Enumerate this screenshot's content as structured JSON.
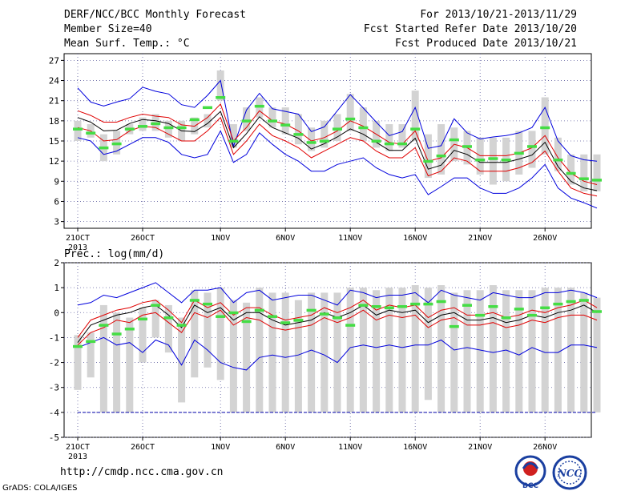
{
  "header": {
    "title": "DERF/NCC/BCC Monthly Forecast",
    "member_size": "Member Size=40",
    "variable_top": "Mean Surf. Temp.: °C",
    "period": "For 2013/10/21-2013/11/29",
    "started": "Fcst Started Refer Date 2013/10/20",
    "produced": "Fcst Produced Date 2013/10/21"
  },
  "footer": {
    "url": "http://cmdp.ncc.cma.gov.cn",
    "grads": "GrADS: COLA/IGES",
    "logo_left_text": "BCC",
    "logo_right_text": "NCC"
  },
  "colors": {
    "envelope": "#0000dd",
    "spread": "#e00000",
    "mean": "#000000",
    "box": "#d3d3d3",
    "marker": "#44dd44",
    "grid": "#6060a0",
    "ref_line": "#0000aa"
  },
  "chart_data": [
    {
      "type": "line",
      "title": "Mean Surf. Temp.: °C",
      "x_ticks": [
        {
          "day": 0,
          "label": "21OCT",
          "sublabel": "2013"
        },
        {
          "day": 5,
          "label": "26OCT"
        },
        {
          "day": 11,
          "label": "1NOV"
        },
        {
          "day": 16,
          "label": "6NOV"
        },
        {
          "day": 21,
          "label": "11NOV"
        },
        {
          "day": 26,
          "label": "16NOV"
        },
        {
          "day": 31,
          "label": "21NOV"
        },
        {
          "day": 36,
          "label": "26NOV"
        }
      ],
      "ylim": [
        2,
        28
      ],
      "yticks": [
        3,
        6,
        9,
        12,
        15,
        18,
        21,
        24,
        27
      ],
      "grid": true,
      "box_low": [
        15,
        15.5,
        12,
        13,
        16,
        16.5,
        16.5,
        15.5,
        15,
        16,
        17,
        21,
        14,
        16.5,
        18.5,
        17,
        16,
        14.5,
        13.5,
        14,
        15,
        16.5,
        15,
        14,
        13.5,
        14,
        15,
        9.5,
        10,
        12,
        11.5,
        10,
        8.5,
        9,
        10,
        11,
        13,
        10.5,
        8.5,
        7.5,
        7.5
      ],
      "box_high": [
        18,
        17.5,
        16,
        16.5,
        17.5,
        18.5,
        19,
        18,
        18,
        18.5,
        19,
        25.5,
        17.5,
        20,
        21.5,
        20,
        20,
        19,
        17,
        18,
        19,
        22,
        20,
        18,
        17.5,
        17.5,
        22.5,
        16,
        17.5,
        17,
        16.5,
        15.5,
        15.5,
        15.5,
        16.5,
        16.5,
        21.5,
        15.5,
        13,
        13,
        13
      ],
      "series": [
        {
          "name": "upper envelope",
          "values": [
            22.9,
            20.8,
            20.2,
            20.8,
            21.3,
            23.0,
            22.4,
            22.0,
            20.4,
            20.0,
            21.8,
            24.0,
            14.2,
            19.6,
            22.1,
            19.8,
            19.4,
            19.0,
            16.4,
            17.1,
            19.5,
            21.9,
            19.9,
            17.8,
            15.8,
            16.4,
            20.0,
            13.9,
            14.3,
            18.3,
            16.2,
            15.3,
            15.6,
            15.8,
            16.2,
            17.0,
            20.0,
            15.0,
            12.8,
            12.2,
            12.0
          ]
        },
        {
          "name": "upper spread",
          "values": [
            19.5,
            18.8,
            17.8,
            17.8,
            18.5,
            19.0,
            18.7,
            18.5,
            17.4,
            17.2,
            18.5,
            20.5,
            15.0,
            17.0,
            19.5,
            18.0,
            17.5,
            16.5,
            15.0,
            15.5,
            16.5,
            18.0,
            17.2,
            16.0,
            14.8,
            14.5,
            16.5,
            12.0,
            12.5,
            14.5,
            14.0,
            12.8,
            12.8,
            12.8,
            13.2,
            14.0,
            15.8,
            12.5,
            10.2,
            9.0,
            8.5
          ]
        },
        {
          "name": "ensemble mean",
          "values": [
            18.5,
            17.8,
            16.5,
            16.6,
            17.6,
            18.2,
            18.0,
            17.6,
            16.5,
            16.4,
            17.6,
            19.4,
            14.0,
            16.1,
            18.6,
            17.0,
            16.2,
            15.4,
            13.8,
            14.6,
            15.6,
            16.8,
            16.0,
            14.8,
            13.6,
            13.6,
            15.4,
            10.8,
            11.4,
            13.6,
            13.0,
            11.8,
            11.8,
            11.8,
            12.3,
            12.9,
            14.8,
            11.2,
            9.0,
            8.0,
            7.6
          ]
        },
        {
          "name": "lower spread",
          "values": [
            17.0,
            16.5,
            15.0,
            15.2,
            16.5,
            17.2,
            17.0,
            16.0,
            15.0,
            15.0,
            16.5,
            18.5,
            13.0,
            15.0,
            17.5,
            15.8,
            15.0,
            14.0,
            12.5,
            13.5,
            14.5,
            15.5,
            15.0,
            13.5,
            12.5,
            12.5,
            14.0,
            9.8,
            10.5,
            12.5,
            12.0,
            10.5,
            10.5,
            10.5,
            11.0,
            11.8,
            13.5,
            10.5,
            8.0,
            7.2,
            6.8
          ]
        },
        {
          "name": "lower envelope",
          "values": [
            15.5,
            15.0,
            13.0,
            13.5,
            14.5,
            15.5,
            15.5,
            14.8,
            13.0,
            12.5,
            13.0,
            16.5,
            11.8,
            13.0,
            16.2,
            14.5,
            13.0,
            12.0,
            10.5,
            10.5,
            11.5,
            12.0,
            12.5,
            11.0,
            10.0,
            9.5,
            10.0,
            7.0,
            8.2,
            9.5,
            9.5,
            8.0,
            7.2,
            7.2,
            8.0,
            9.5,
            11.5,
            8.0,
            6.5,
            5.8,
            5.0
          ]
        }
      ],
      "markers": [
        16.8,
        16.2,
        14.0,
        14.6,
        16.8,
        17.2,
        17.6,
        17.0,
        17.0,
        18.2,
        20.0,
        21.5,
        15.0,
        18.0,
        20.2,
        18.0,
        17.4,
        16.0,
        14.8,
        15.0,
        16.8,
        18.3,
        17.0,
        15.0,
        14.6,
        14.6,
        16.8,
        12.0,
        12.8,
        15.2,
        14.2,
        12.2,
        12.4,
        12.2,
        13.2,
        14.2,
        17.0,
        12.2,
        10.2,
        9.4,
        9.2
      ]
    },
    {
      "type": "line",
      "title": "Prec.: log(mm/d)",
      "x_ticks": [
        {
          "day": 0,
          "label": "21OCT",
          "sublabel": "2013"
        },
        {
          "day": 5,
          "label": "26OCT"
        },
        {
          "day": 11,
          "label": "1NOV"
        },
        {
          "day": 16,
          "label": "6NOV"
        },
        {
          "day": 21,
          "label": "11NOV"
        },
        {
          "day": 26,
          "label": "16NOV"
        },
        {
          "day": 31,
          "label": "21NOV"
        },
        {
          "day": 36,
          "label": "26NOV"
        }
      ],
      "ylim": [
        -5,
        2
      ],
      "yticks": [
        -5,
        -4,
        -3,
        -2,
        -1,
        0,
        1,
        2
      ],
      "grid": true,
      "reference_line": -4,
      "box_low": [
        -3.1,
        -2.6,
        -4,
        -4,
        -4,
        -2.0,
        -1.0,
        -1.6,
        -3.6,
        -2.6,
        -2.2,
        -2.7,
        -4,
        -4,
        -4,
        -4,
        -4,
        -4,
        -4,
        -4,
        -4,
        -4,
        -4,
        -4,
        -4,
        -4,
        -4,
        -3.5,
        -4,
        -4,
        -4,
        -4,
        -4,
        -4,
        -4,
        -4,
        -4,
        -4,
        -4,
        -4,
        -4
      ],
      "box_high": [
        -0.9,
        -0.8,
        0.3,
        0.0,
        -0.2,
        0.2,
        0.5,
        0.3,
        -0.2,
        0.9,
        0.8,
        1.0,
        0.5,
        0.4,
        1.0,
        0.8,
        0.8,
        0.5,
        0.8,
        0.8,
        0.8,
        1.0,
        1.0,
        0.9,
        1.0,
        1.0,
        1.1,
        1.0,
        1.1,
        0.8,
        0.9,
        0.9,
        1.1,
        0.9,
        0.9,
        0.9,
        1.0,
        1.0,
        1.0,
        0.8,
        0.6
      ],
      "series": [
        {
          "name": "upper envelope",
          "values": [
            0.3,
            0.4,
            0.7,
            0.6,
            0.8,
            1.0,
            1.2,
            0.8,
            0.4,
            0.9,
            0.9,
            1.0,
            0.4,
            0.8,
            0.9,
            0.5,
            0.6,
            0.7,
            0.7,
            0.5,
            0.3,
            0.9,
            0.8,
            0.6,
            0.7,
            0.7,
            0.8,
            0.4,
            0.9,
            0.7,
            0.6,
            0.5,
            0.8,
            0.7,
            0.6,
            0.6,
            0.8,
            0.8,
            0.9,
            0.8,
            0.6
          ]
        },
        {
          "name": "ensemble mean",
          "values": [
            -1.2,
            -0.5,
            -0.3,
            -0.1,
            0.0,
            0.2,
            0.3,
            -0.1,
            -0.6,
            0.3,
            0.0,
            0.2,
            -0.3,
            0.0,
            0.0,
            -0.3,
            -0.5,
            -0.4,
            -0.3,
            0.0,
            -0.2,
            0.0,
            0.3,
            -0.1,
            0.1,
            0.0,
            0.1,
            -0.4,
            -0.1,
            0.0,
            -0.3,
            -0.3,
            -0.2,
            -0.4,
            -0.3,
            -0.1,
            -0.2,
            0.0,
            0.1,
            0.3,
            0.0
          ]
        },
        {
          "name": "upper spread",
          "values": [
            -1.0,
            -0.3,
            -0.1,
            0.1,
            0.2,
            0.4,
            0.5,
            0.1,
            -0.4,
            0.5,
            0.2,
            0.4,
            -0.1,
            0.2,
            0.2,
            -0.1,
            -0.3,
            -0.2,
            -0.1,
            0.2,
            0.0,
            0.2,
            0.5,
            0.1,
            0.3,
            0.2,
            0.3,
            -0.2,
            0.1,
            0.2,
            -0.1,
            -0.1,
            0.0,
            -0.2,
            -0.1,
            0.1,
            0.0,
            0.2,
            0.3,
            0.5,
            0.2
          ]
        },
        {
          "name": "lower spread",
          "values": [
            -1.3,
            -0.8,
            -0.6,
            -0.3,
            -0.4,
            -0.1,
            0.0,
            -0.4,
            -0.8,
            0.0,
            -0.2,
            0.1,
            -0.5,
            -0.2,
            -0.3,
            -0.6,
            -0.7,
            -0.6,
            -0.5,
            -0.2,
            -0.4,
            -0.2,
            0.1,
            -0.3,
            -0.1,
            -0.2,
            -0.1,
            -0.6,
            -0.3,
            -0.2,
            -0.5,
            -0.5,
            -0.4,
            -0.6,
            -0.5,
            -0.3,
            -0.4,
            -0.2,
            -0.1,
            -0.1,
            -0.3
          ]
        },
        {
          "name": "lower envelope",
          "values": [
            -1.4,
            -1.2,
            -1.0,
            -1.3,
            -1.2,
            -1.6,
            -1.1,
            -1.3,
            -2.1,
            -1.1,
            -1.5,
            -2.0,
            -2.2,
            -2.3,
            -1.8,
            -1.7,
            -1.8,
            -1.7,
            -1.5,
            -1.7,
            -2.0,
            -1.4,
            -1.3,
            -1.4,
            -1.3,
            -1.4,
            -1.3,
            -1.3,
            -1.1,
            -1.5,
            -1.4,
            -1.5,
            -1.6,
            -1.5,
            -1.7,
            -1.4,
            -1.6,
            -1.6,
            -1.3,
            -1.3,
            -1.4
          ]
        }
      ],
      "markers": [
        -1.35,
        -1.15,
        -0.5,
        -0.85,
        -0.65,
        -0.25,
        0.3,
        -0.2,
        -0.5,
        0.5,
        0.35,
        -0.15,
        0.0,
        -0.35,
        0.1,
        -0.15,
        -0.4,
        -0.3,
        0.1,
        -0.05,
        -0.2,
        -0.5,
        0.3,
        0.25,
        0.2,
        0.25,
        0.35,
        0.35,
        0.45,
        -0.55,
        0.3,
        -0.1,
        0.25,
        -0.2,
        0.15,
        -0.1,
        0.2,
        0.35,
        0.45,
        0.5,
        0.05
      ]
    }
  ]
}
